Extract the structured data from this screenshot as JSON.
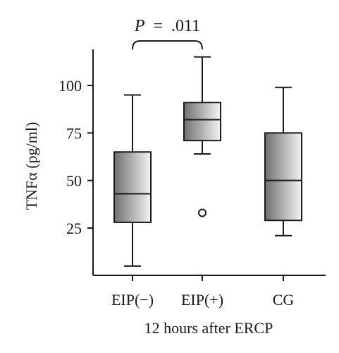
{
  "chart_data": {
    "type": "box",
    "categories": [
      "EIP(−)",
      "EIP(+)",
      "CG"
    ],
    "boxes": [
      {
        "category": "EIP(−)",
        "whisker_low": 5,
        "q1": 28,
        "median": 43,
        "q3": 65,
        "whisker_high": 95,
        "outliers": []
      },
      {
        "category": "EIP(+)",
        "whisker_low": 64,
        "q1": 71,
        "median": 82,
        "q3": 91,
        "whisker_high": 115,
        "outliers": [
          33
        ]
      },
      {
        "category": "CG",
        "whisker_low": 21,
        "q1": 29,
        "median": 50,
        "q3": 75,
        "whisker_high": 99,
        "outliers": []
      }
    ],
    "yticks": [
      25,
      50,
      75,
      100
    ],
    "ylim": [
      0,
      125
    ],
    "ylabel": "TNFα (pg/ml)",
    "xlabel": "12 hours after ERCP",
    "annotation": {
      "from": "EIP(−)",
      "to": "EIP(+)",
      "text": ".011",
      "prefix": "P",
      "equals": "="
    },
    "colors": {
      "box_light": "#f4f4f4",
      "box_dark": "#707070",
      "line": "#1a1a1a"
    }
  }
}
